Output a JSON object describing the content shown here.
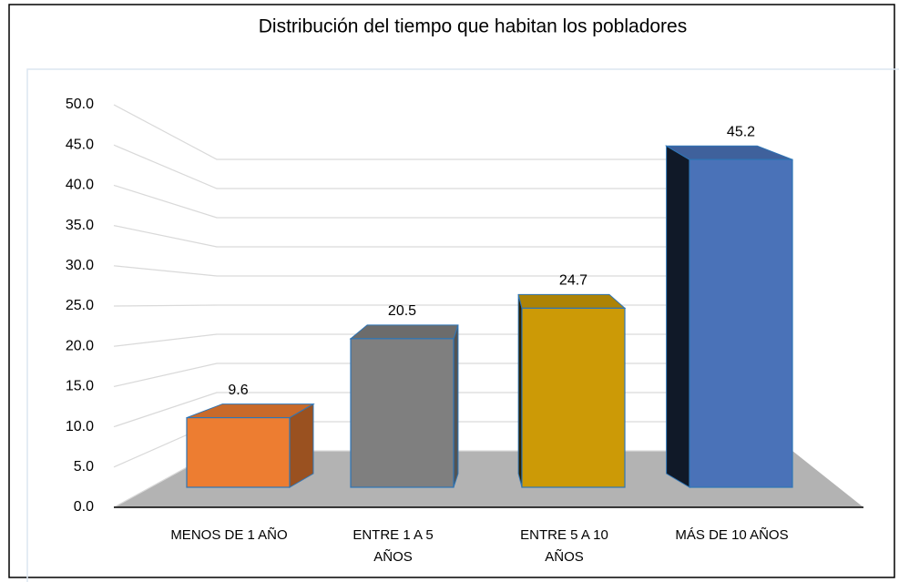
{
  "chart_data": {
    "type": "bar3d",
    "title": "Distribución del tiempo que habitan los pobladores",
    "categories": [
      "MENOS DE 1 AÑO",
      "ENTRE 1 A  5 AÑOS",
      "ENTRE 5 A 10 AÑOS",
      "MÁS DE 10 AÑOS"
    ],
    "values": [
      9.6,
      20.5,
      24.7,
      45.2
    ],
    "colors": [
      "#ed7d31",
      "#7f7f7f",
      "#cc9a06",
      "#4a72b8"
    ],
    "ylim": [
      0,
      50
    ],
    "yticks": [
      {
        "value": 0,
        "label": "0.0"
      },
      {
        "value": 5,
        "label": "5.0"
      },
      {
        "value": 10,
        "label": "10.0"
      },
      {
        "value": 15,
        "label": "15.0"
      },
      {
        "value": 20,
        "label": "20.0"
      },
      {
        "value": 25,
        "label": "25.0"
      },
      {
        "value": 30,
        "label": "30.0"
      },
      {
        "value": 35,
        "label": "35.0"
      },
      {
        "value": 40,
        "label": "40.0"
      },
      {
        "value": 45,
        "label": "45.0"
      },
      {
        "value": 50,
        "label": "50.0"
      }
    ],
    "grid": true
  }
}
